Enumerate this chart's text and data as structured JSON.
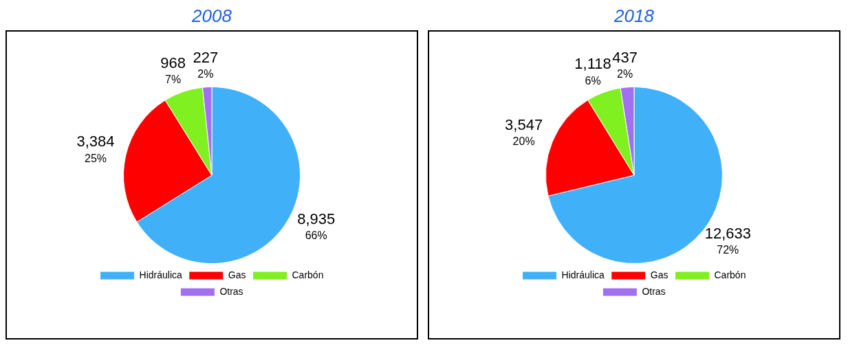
{
  "chart_data": [
    {
      "type": "pie",
      "title": "2008",
      "categories": [
        "Hidráulica",
        "Gas",
        "Carbón",
        "Otras"
      ],
      "values": [
        8935,
        3384,
        968,
        227
      ],
      "colors": [
        "#40b0f8",
        "#ff0000",
        "#80f020",
        "#a070f0"
      ],
      "value_labels": [
        "8,935",
        "3,384",
        "968",
        "227"
      ],
      "annotations": [
        "66%",
        "25%",
        "7%",
        "2%"
      ],
      "legend": "bottom"
    },
    {
      "type": "pie",
      "title": "2018",
      "categories": [
        "Hidráulica",
        "Gas",
        "Carbón",
        "Otras"
      ],
      "values": [
        12633,
        3547,
        1118,
        437
      ],
      "colors": [
        "#40b0f8",
        "#ff0000",
        "#80f020",
        "#a070f0"
      ],
      "value_labels": [
        "12,633",
        "3,547",
        "1,118",
        "437"
      ],
      "annotations": [
        "72%",
        "20%",
        "6%",
        "2%"
      ],
      "legend": "bottom"
    }
  ]
}
